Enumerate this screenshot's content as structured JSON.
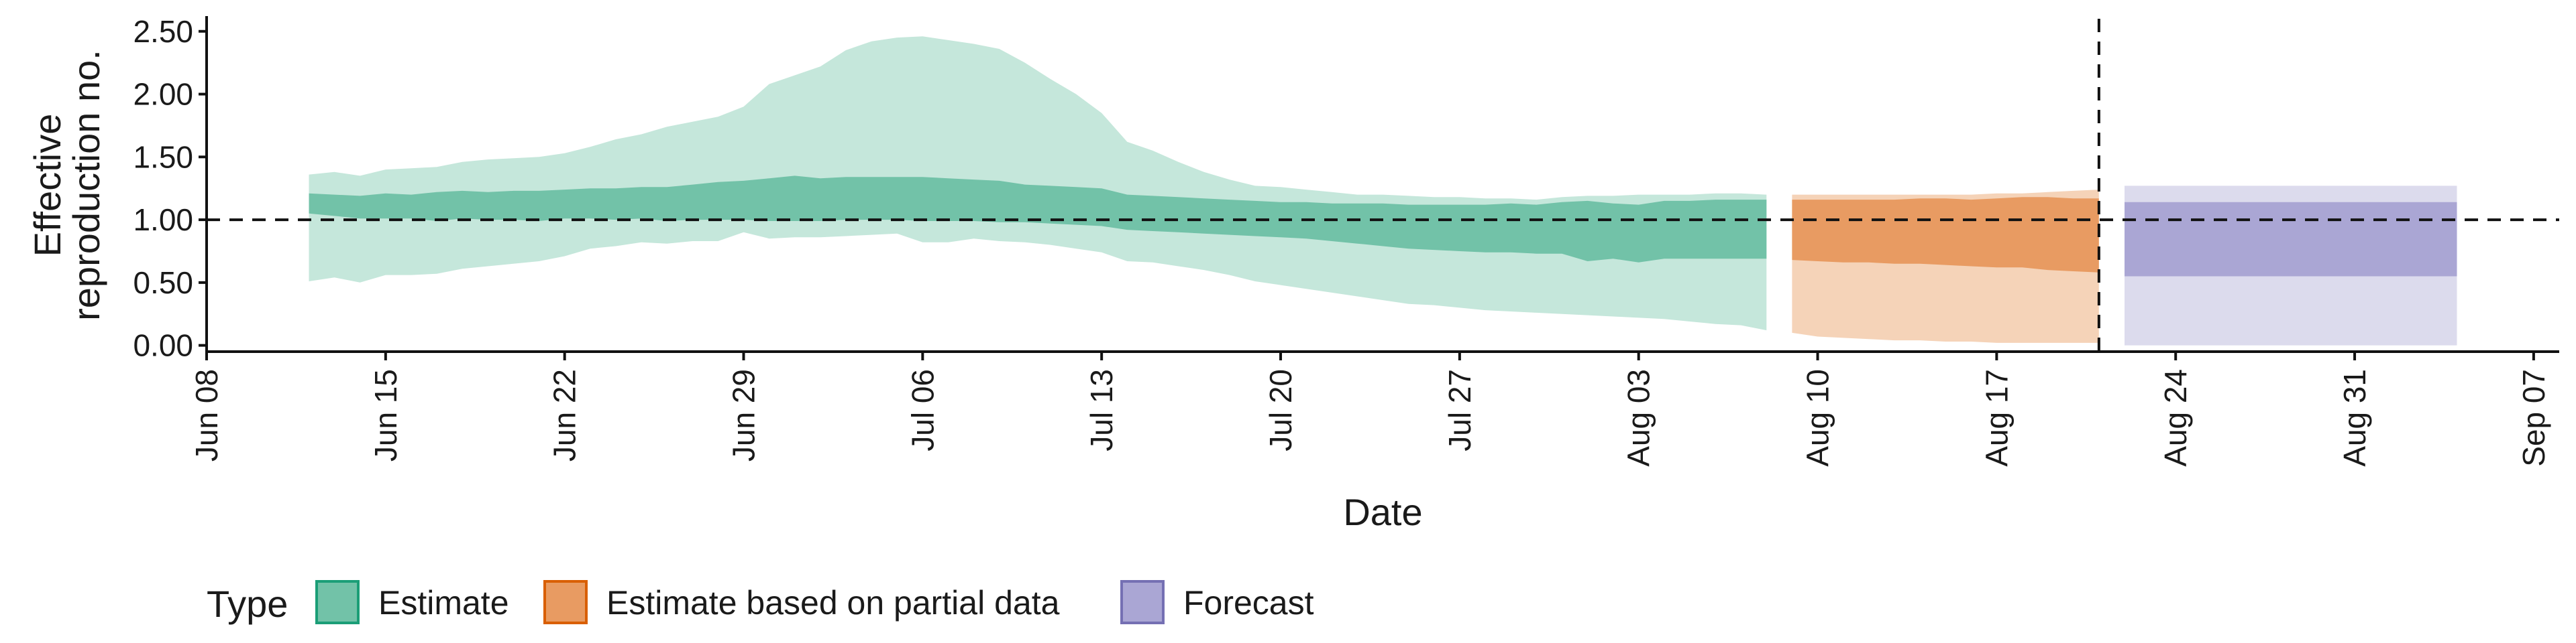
{
  "chart_data": {
    "type": "area",
    "title": "",
    "xlabel": "Date",
    "ylabel_lines": [
      "Effective",
      "reproduction no."
    ],
    "ylim": [
      -0.05,
      2.6
    ],
    "yticks": [
      0,
      0.5,
      1,
      1.5,
      2,
      2.5
    ],
    "ytick_labels": [
      "0.00",
      "0.50",
      "1.00",
      "1.50",
      "2.00",
      "2.50"
    ],
    "xlim_dates": [
      "2020-06-08",
      "2020-09-08"
    ],
    "xticks": [
      {
        "date": "2020-06-08",
        "label": "Jun 08"
      },
      {
        "date": "2020-06-15",
        "label": "Jun 15"
      },
      {
        "date": "2020-06-22",
        "label": "Jun 22"
      },
      {
        "date": "2020-06-29",
        "label": "Jun 29"
      },
      {
        "date": "2020-07-06",
        "label": "Jul 06"
      },
      {
        "date": "2020-07-13",
        "label": "Jul 13"
      },
      {
        "date": "2020-07-20",
        "label": "Jul 20"
      },
      {
        "date": "2020-07-27",
        "label": "Jul 27"
      },
      {
        "date": "2020-08-03",
        "label": "Aug 03"
      },
      {
        "date": "2020-08-10",
        "label": "Aug 10"
      },
      {
        "date": "2020-08-17",
        "label": "Aug 17"
      },
      {
        "date": "2020-08-24",
        "label": "Aug 24"
      },
      {
        "date": "2020-08-31",
        "label": "Aug 31"
      },
      {
        "date": "2020-09-07",
        "label": "Sep 07"
      }
    ],
    "reference_line_y": 1.0,
    "vertical_line_date": "2020-08-21",
    "grid": false,
    "legend": {
      "title": "Type",
      "placement": "bottom",
      "entries": [
        {
          "label": "Estimate",
          "fill": "#72c2a8",
          "stroke": "#1b9e77"
        },
        {
          "label": "Estimate based on partial data",
          "fill": "#e89b62",
          "stroke": "#d95f02"
        },
        {
          "label": "Forecast",
          "fill": "#aaa6d4",
          "stroke": "#7570b3"
        }
      ]
    },
    "series": [
      {
        "type_label": "Estimate",
        "colors": {
          "outer": "#c5e7db",
          "inner": "#72c2a8"
        },
        "dates": [
          "2020-06-12",
          "2020-06-13",
          "2020-06-14",
          "2020-06-15",
          "2020-06-16",
          "2020-06-17",
          "2020-06-18",
          "2020-06-19",
          "2020-06-20",
          "2020-06-21",
          "2020-06-22",
          "2020-06-23",
          "2020-06-24",
          "2020-06-25",
          "2020-06-26",
          "2020-06-27",
          "2020-06-28",
          "2020-06-29",
          "2020-06-30",
          "2020-07-01",
          "2020-07-02",
          "2020-07-03",
          "2020-07-04",
          "2020-07-05",
          "2020-07-06",
          "2020-07-07",
          "2020-07-08",
          "2020-07-09",
          "2020-07-10",
          "2020-07-11",
          "2020-07-12",
          "2020-07-13",
          "2020-07-14",
          "2020-07-15",
          "2020-07-16",
          "2020-07-17",
          "2020-07-18",
          "2020-07-19",
          "2020-07-20",
          "2020-07-21",
          "2020-07-22",
          "2020-07-23",
          "2020-07-24",
          "2020-07-25",
          "2020-07-26",
          "2020-07-27",
          "2020-07-28",
          "2020-07-29",
          "2020-07-30",
          "2020-07-31",
          "2020-08-01",
          "2020-08-02",
          "2020-08-03",
          "2020-08-04",
          "2020-08-05",
          "2020-08-06",
          "2020-08-07",
          "2020-08-08"
        ],
        "upper90": [
          1.36,
          1.38,
          1.35,
          1.4,
          1.41,
          1.42,
          1.46,
          1.48,
          1.49,
          1.5,
          1.53,
          1.58,
          1.64,
          1.68,
          1.74,
          1.78,
          1.82,
          1.9,
          2.08,
          2.15,
          2.22,
          2.35,
          2.42,
          2.45,
          2.46,
          2.43,
          2.4,
          2.36,
          2.25,
          2.12,
          2.0,
          1.85,
          1.62,
          1.55,
          1.46,
          1.38,
          1.32,
          1.27,
          1.26,
          1.24,
          1.22,
          1.2,
          1.2,
          1.19,
          1.18,
          1.18,
          1.17,
          1.17,
          1.16,
          1.18,
          1.19,
          1.19,
          1.2,
          1.2,
          1.2,
          1.21,
          1.21,
          1.2
        ],
        "upper50": [
          1.21,
          1.2,
          1.19,
          1.21,
          1.2,
          1.22,
          1.23,
          1.22,
          1.23,
          1.23,
          1.24,
          1.25,
          1.25,
          1.26,
          1.26,
          1.28,
          1.3,
          1.31,
          1.33,
          1.35,
          1.33,
          1.34,
          1.34,
          1.34,
          1.34,
          1.33,
          1.32,
          1.31,
          1.28,
          1.27,
          1.26,
          1.25,
          1.2,
          1.19,
          1.18,
          1.17,
          1.16,
          1.15,
          1.14,
          1.14,
          1.13,
          1.13,
          1.13,
          1.12,
          1.12,
          1.12,
          1.12,
          1.13,
          1.12,
          1.14,
          1.15,
          1.13,
          1.12,
          1.15,
          1.15,
          1.16,
          1.16,
          1.16
        ],
        "lower50": [
          1.05,
          1.03,
          1.01,
          1.01,
          1.01,
          0.99,
          1.01,
          1.0,
          1.0,
          0.99,
          1.01,
          1.01,
          1.0,
          1.01,
          0.99,
          1.0,
          1.0,
          1.0,
          0.99,
          0.99,
          0.99,
          1.0,
          1.0,
          1.0,
          0.99,
          0.99,
          0.99,
          0.98,
          0.98,
          0.97,
          0.96,
          0.95,
          0.92,
          0.91,
          0.9,
          0.89,
          0.88,
          0.87,
          0.86,
          0.85,
          0.83,
          0.81,
          0.79,
          0.77,
          0.76,
          0.75,
          0.74,
          0.74,
          0.73,
          0.73,
          0.67,
          0.69,
          0.66,
          0.69,
          0.69,
          0.69,
          0.69,
          0.69
        ],
        "lower90": [
          0.51,
          0.54,
          0.5,
          0.56,
          0.56,
          0.57,
          0.61,
          0.63,
          0.65,
          0.67,
          0.71,
          0.77,
          0.79,
          0.82,
          0.81,
          0.83,
          0.83,
          0.9,
          0.85,
          0.86,
          0.86,
          0.87,
          0.88,
          0.89,
          0.82,
          0.82,
          0.85,
          0.83,
          0.82,
          0.8,
          0.77,
          0.74,
          0.67,
          0.66,
          0.63,
          0.6,
          0.56,
          0.51,
          0.48,
          0.45,
          0.42,
          0.39,
          0.36,
          0.33,
          0.32,
          0.3,
          0.28,
          0.27,
          0.26,
          0.25,
          0.24,
          0.23,
          0.22,
          0.21,
          0.19,
          0.17,
          0.16,
          0.12
        ]
      },
      {
        "type_label": "Estimate based on partial data",
        "colors": {
          "outer": "#f5d3b8",
          "inner": "#e89b62"
        },
        "dates": [
          "2020-08-09",
          "2020-08-10",
          "2020-08-11",
          "2020-08-12",
          "2020-08-13",
          "2020-08-14",
          "2020-08-15",
          "2020-08-16",
          "2020-08-17",
          "2020-08-18",
          "2020-08-19",
          "2020-08-20",
          "2020-08-21"
        ],
        "upper90": [
          1.2,
          1.2,
          1.2,
          1.2,
          1.2,
          1.2,
          1.2,
          1.2,
          1.21,
          1.21,
          1.22,
          1.23,
          1.24
        ],
        "upper50": [
          1.16,
          1.16,
          1.16,
          1.16,
          1.16,
          1.17,
          1.17,
          1.16,
          1.17,
          1.18,
          1.18,
          1.17,
          1.17
        ],
        "lower50": [
          0.68,
          0.67,
          0.66,
          0.66,
          0.65,
          0.65,
          0.64,
          0.63,
          0.62,
          0.62,
          0.6,
          0.59,
          0.58
        ],
        "lower90": [
          0.1,
          0.07,
          0.06,
          0.05,
          0.04,
          0.04,
          0.03,
          0.03,
          0.02,
          0.02,
          0.02,
          0.02,
          0.02
        ]
      },
      {
        "type_label": "Forecast",
        "colors": {
          "outer": "#dcdbed",
          "inner": "#aaa6d4"
        },
        "dates": [
          "2020-08-22",
          "2020-09-04"
        ],
        "upper90": [
          1.27,
          1.27
        ],
        "upper50": [
          1.14,
          1.14
        ],
        "lower50": [
          0.55,
          0.55
        ],
        "lower90": [
          0.0,
          0.0
        ]
      }
    ]
  }
}
